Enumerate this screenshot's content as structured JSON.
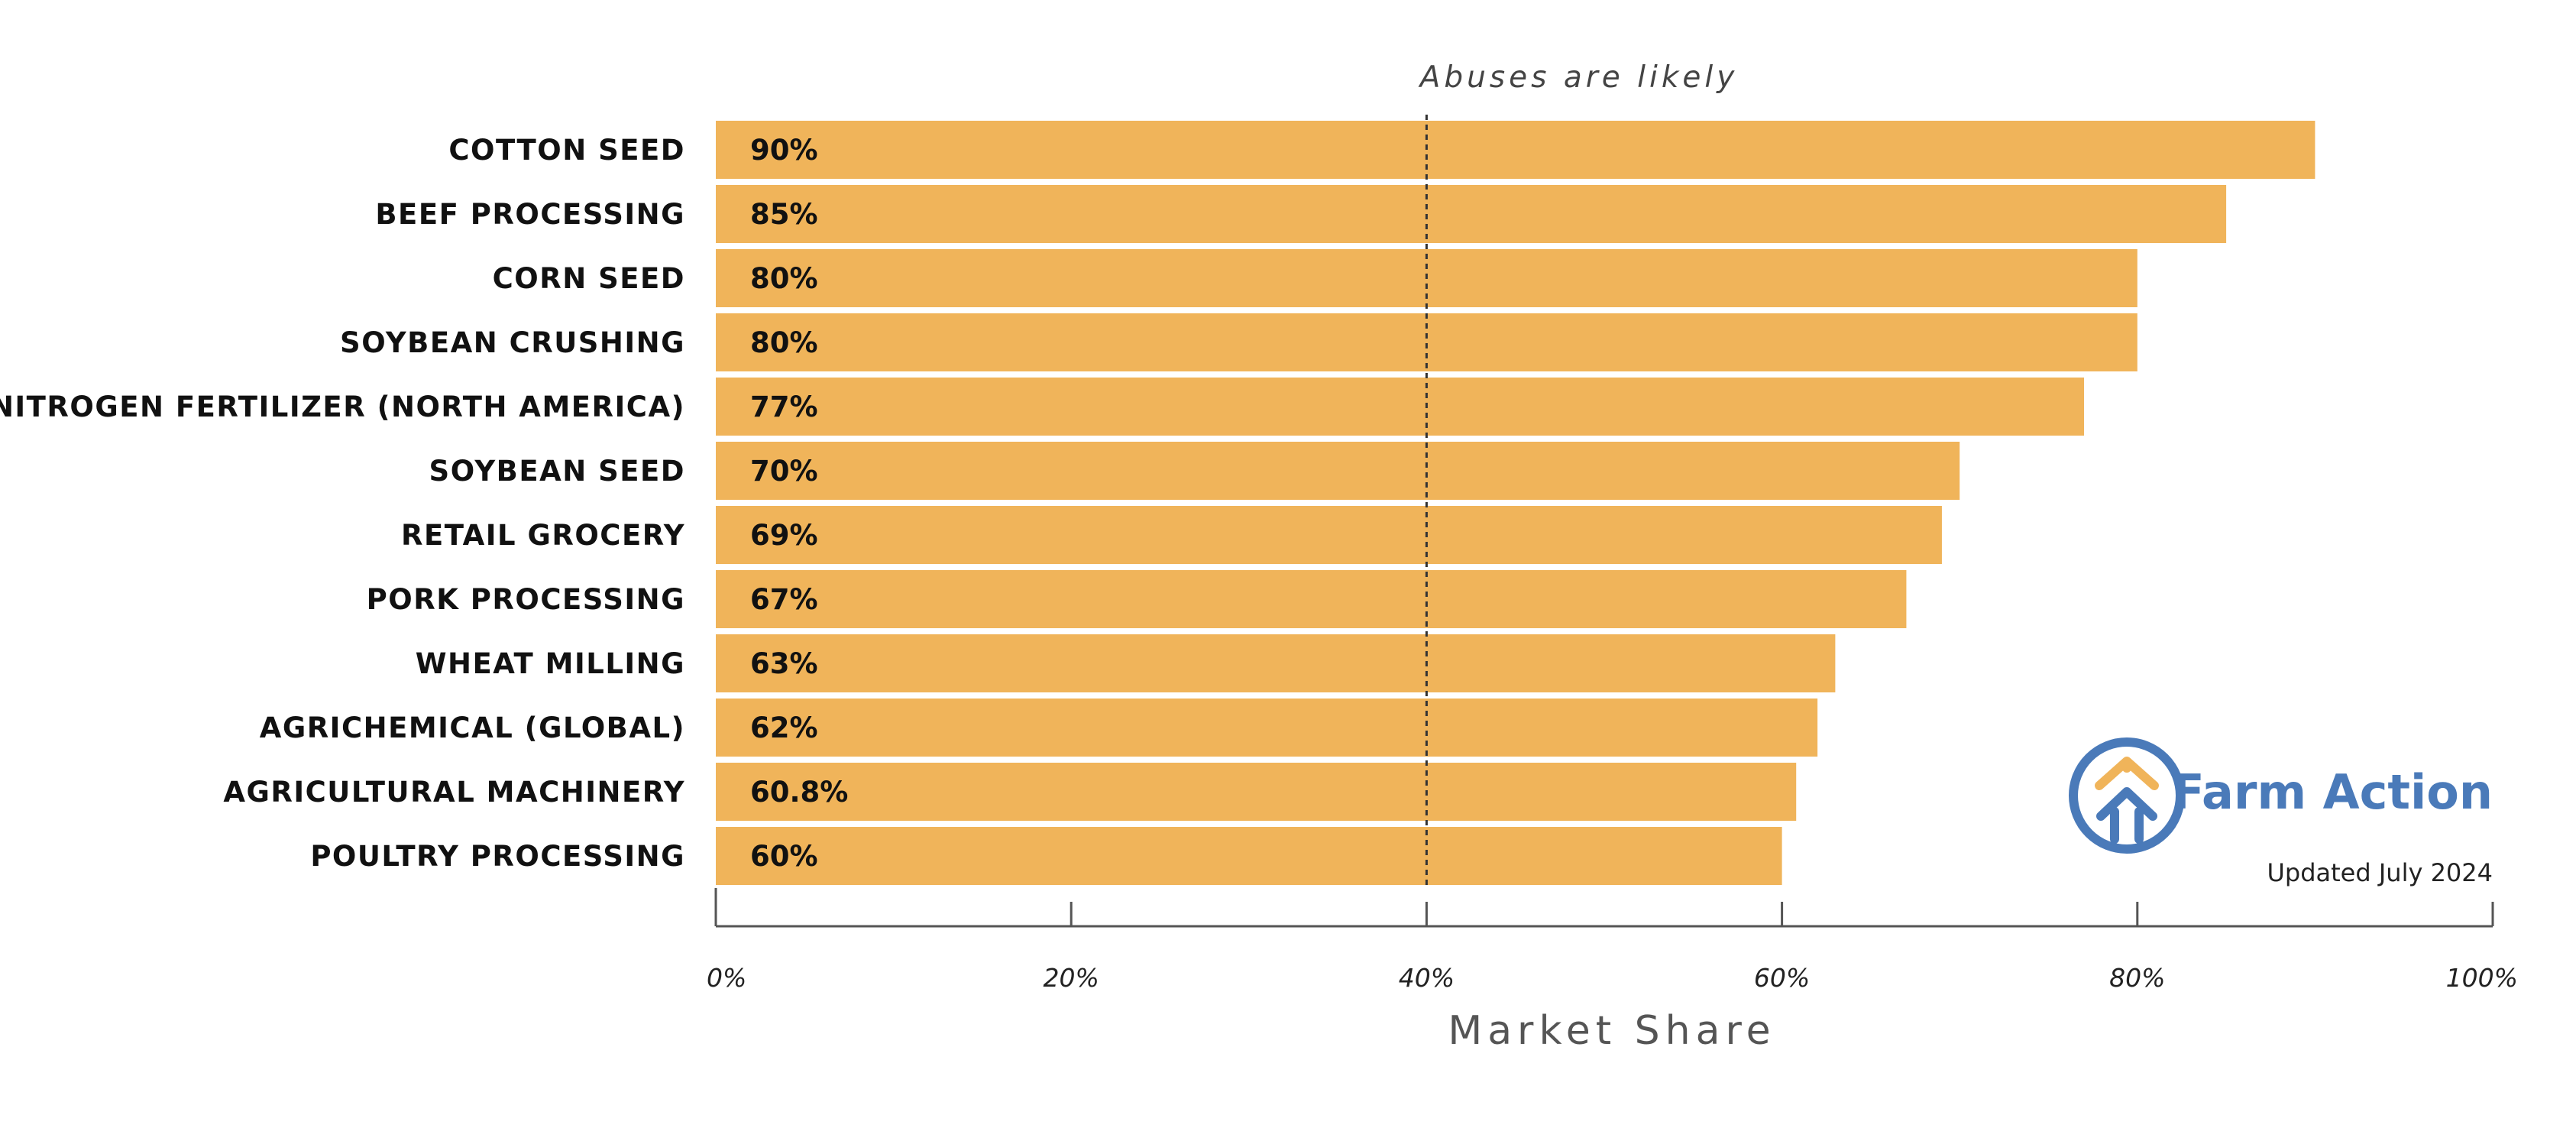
{
  "chart_data": {
    "type": "bar",
    "orientation": "horizontal",
    "categories": [
      "COTTON SEED",
      "BEEF PROCESSING",
      "CORN SEED",
      "SOYBEAN CRUSHING",
      "NITROGEN FERTILIZER (NORTH AMERICA)",
      "SOYBEAN SEED",
      "RETAIL GROCERY",
      "PORK PROCESSING",
      "WHEAT MILLING",
      "AGRICHEMICAL (GLOBAL)",
      "AGRICULTURAL MACHINERY",
      "POULTRY PROCESSING"
    ],
    "values": [
      90,
      85,
      80,
      80,
      77,
      70,
      69,
      67,
      63,
      62,
      60.8,
      60
    ],
    "value_labels": [
      "90%",
      "85%",
      "80%",
      "80%",
      "77%",
      "70%",
      "69%",
      "67%",
      "63%",
      "62%",
      "60.8%",
      "60%"
    ],
    "xlim": [
      0,
      100
    ],
    "xticks": [
      0,
      20,
      40,
      60,
      80,
      100
    ],
    "xtick_labels": [
      "0%",
      "20%",
      "40%",
      "60%",
      "80%",
      "100%"
    ],
    "xlabel": "Market Share",
    "grid": false,
    "bar_color": "#F0B45A",
    "reference_line": {
      "x": 40,
      "label": "Abuses are likely",
      "style": "dashed"
    }
  },
  "brand": {
    "name": "Farm Action",
    "color": "#4A7AB9",
    "accent": "#F0B45A",
    "icon": "farm-action-arrows-icon"
  },
  "footer": {
    "updated": "Updated July 2024"
  }
}
